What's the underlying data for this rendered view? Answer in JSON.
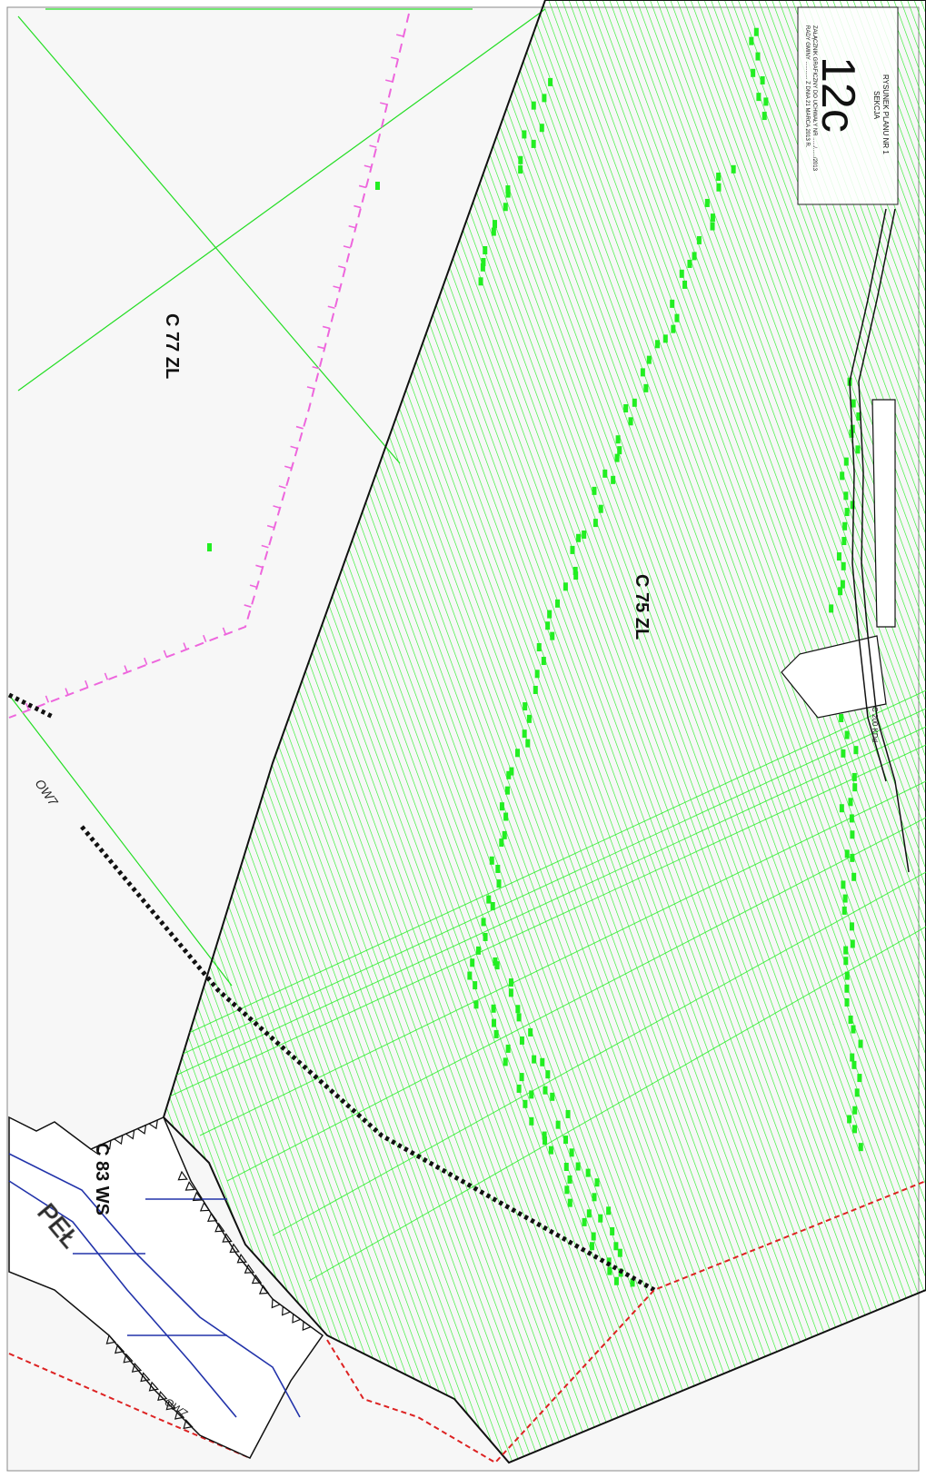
{
  "sheet": {
    "number": "12c",
    "title_line": "RYSUNEK PLANU NR 1",
    "section_word": "SEKCJA",
    "annex_line1": "ZAŁĄCZNIK GRAFICZNY DO UCHWAŁY NR ....../....../2013",
    "annex_line2": "RADY GMINY ............ Z DNIA 21 MARCA 2013 R."
  },
  "zones": {
    "c77": "C 77 ZL",
    "c75": "C 75 ZL",
    "c83": "C 83 WS",
    "c200": "C 200 KDd"
  },
  "labels": {
    "ow7_a": "OW7",
    "ow7_b": "OW7",
    "river": "PEŁ"
  },
  "colors": {
    "forest_hatch": "#22ee22",
    "boundary": "#111111",
    "pink_line": "#ee66dd",
    "water": "#2233aa",
    "red_dashed": "#dd2222",
    "background": "#f7f7f7"
  }
}
